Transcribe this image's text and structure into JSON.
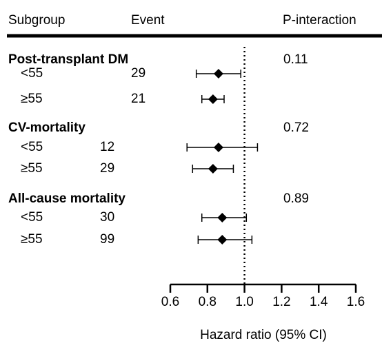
{
  "chart_data": {
    "type": "forest",
    "headers": {
      "subgroup": "Subgroup",
      "event": "Event",
      "p": "P-interaction"
    },
    "x_label": "Hazard ratio (95% CI)",
    "xlim": [
      0.6,
      1.6
    ],
    "xticks": [
      0.6,
      0.8,
      {
        "value": 1,
        "label": "1.0"
      },
      1.2,
      1.4,
      1.6
    ],
    "reference_line": 1,
    "color": "#000000",
    "groups": [
      {
        "name": "Post-transplant DM",
        "p_value": 0.11,
        "rows": [
          {
            "label": "<55",
            "events": 29,
            "hr": 0.86,
            "lower": 0.74,
            "upper": 0.98
          },
          {
            "label": "≥55",
            "events": 21,
            "hr": 0.83,
            "lower": 0.77,
            "upper": 0.89
          }
        ]
      },
      {
        "name": "CV-mortality",
        "p_value": 0.72,
        "rows": [
          {
            "label": "<55",
            "events": 12,
            "hr": 0.86,
            "lower": 0.69,
            "upper": 1.07
          },
          {
            "label": "≥55",
            "events": 29,
            "hr": 0.83,
            "lower": 0.72,
            "upper": 0.94
          }
        ]
      },
      {
        "name": "All-cause mortality",
        "p_value": 0.89,
        "rows": [
          {
            "label": "<55",
            "events": 30,
            "hr": 0.88,
            "lower": 0.77,
            "upper": 1.01
          },
          {
            "label": "≥55",
            "events": 99,
            "hr": 0.88,
            "lower": 0.75,
            "upper": 1.04
          }
        ]
      }
    ]
  }
}
